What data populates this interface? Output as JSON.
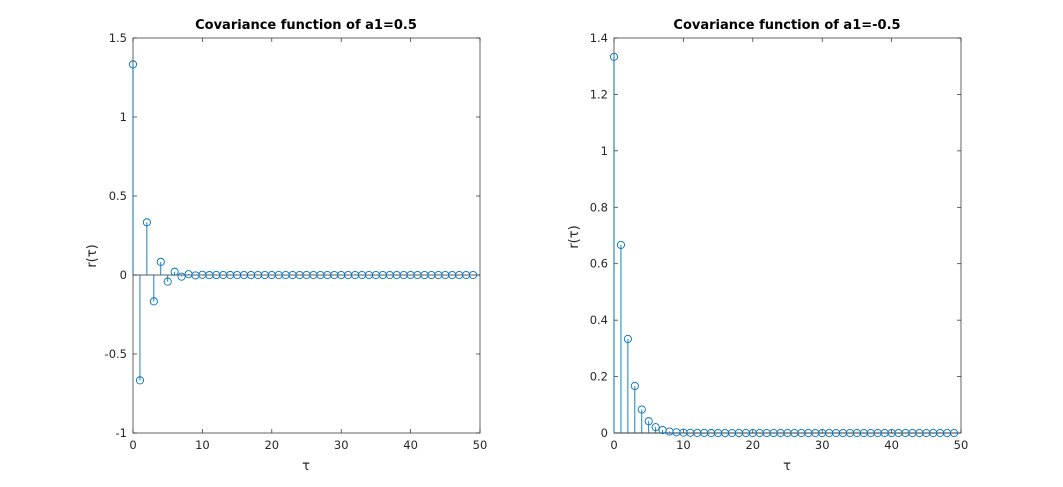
{
  "chart_data": [
    {
      "type": "stem",
      "title": "Covariance function of a1=0.5",
      "xlabel": "τ",
      "ylabel": "r(τ)",
      "xlim": [
        0,
        50
      ],
      "ylim": [
        -1,
        1.5
      ],
      "xticks": [
        0,
        10,
        20,
        30,
        40,
        50
      ],
      "xtick_labels": [
        "0",
        "10",
        "20",
        "30",
        "40",
        "50"
      ],
      "yticks": [
        -1,
        -0.5,
        0,
        0.5,
        1,
        1.5
      ],
      "ytick_labels": [
        "-1",
        "-0.5",
        "0",
        "0.5",
        "1",
        "1.5"
      ],
      "grid": false,
      "series": [
        {
          "x": [
            0,
            1,
            2,
            3,
            4,
            5,
            6,
            7,
            8,
            9,
            10,
            11,
            12,
            13,
            14,
            15,
            16,
            17,
            18,
            19,
            20,
            21,
            22,
            23,
            24,
            25,
            26,
            27,
            28,
            29,
            30,
            31,
            32,
            33,
            34,
            35,
            36,
            37,
            38,
            39,
            40,
            41,
            42,
            43,
            44,
            45,
            46,
            47,
            48,
            49
          ],
          "values": [
            1.3333,
            -0.6667,
            0.3333,
            -0.1667,
            0.0833,
            -0.0417,
            0.0208,
            -0.0104,
            0.0052,
            -0.0026,
            0.0013,
            -0.0007,
            0.0003,
            -0.0002,
            0.0001,
            0,
            0,
            0,
            0,
            0,
            0,
            0,
            0,
            0,
            0,
            0,
            0,
            0,
            0,
            0,
            0,
            0,
            0,
            0,
            0,
            0,
            0,
            0,
            0,
            0,
            0,
            0,
            0,
            0,
            0,
            0,
            0,
            0,
            0,
            0
          ]
        }
      ]
    },
    {
      "type": "stem",
      "title": "Covariance function of a1=-0.5",
      "xlabel": "τ",
      "ylabel": "r(τ)",
      "xlim": [
        0,
        50
      ],
      "ylim": [
        0,
        1.4
      ],
      "xticks": [
        0,
        10,
        20,
        30,
        40,
        50
      ],
      "xtick_labels": [
        "0",
        "10",
        "20",
        "30",
        "40",
        "50"
      ],
      "yticks": [
        0,
        0.2,
        0.4,
        0.6,
        0.8,
        1,
        1.2,
        1.4
      ],
      "ytick_labels": [
        "0",
        "0.2",
        "0.4",
        "0.6",
        "0.8",
        "1",
        "1.2",
        "1.4"
      ],
      "grid": false,
      "series": [
        {
          "x": [
            0,
            1,
            2,
            3,
            4,
            5,
            6,
            7,
            8,
            9,
            10,
            11,
            12,
            13,
            14,
            15,
            16,
            17,
            18,
            19,
            20,
            21,
            22,
            23,
            24,
            25,
            26,
            27,
            28,
            29,
            30,
            31,
            32,
            33,
            34,
            35,
            36,
            37,
            38,
            39,
            40,
            41,
            42,
            43,
            44,
            45,
            46,
            47,
            48,
            49
          ],
          "values": [
            1.3333,
            0.6667,
            0.3333,
            0.1667,
            0.0833,
            0.0417,
            0.0208,
            0.0104,
            0.0052,
            0.0026,
            0.0013,
            0.0007,
            0.0003,
            0.0002,
            0.0001,
            0,
            0,
            0,
            0,
            0,
            0,
            0,
            0,
            0,
            0,
            0,
            0,
            0,
            0,
            0,
            0,
            0,
            0,
            0,
            0,
            0,
            0,
            0,
            0,
            0,
            0,
            0,
            0,
            0,
            0,
            0,
            0,
            0,
            0,
            0
          ]
        }
      ]
    }
  ],
  "colors": {
    "stem": "#0072bd",
    "axes": "#262626",
    "background": "#ffffff"
  }
}
